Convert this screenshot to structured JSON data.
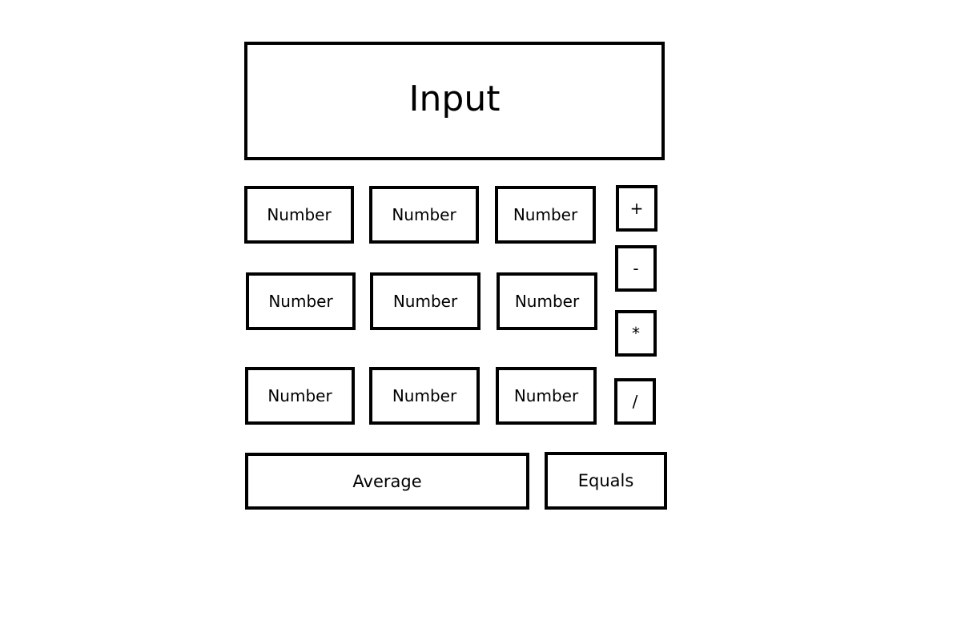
{
  "display": {
    "label": "Input"
  },
  "keypad": {
    "numbers": [
      "Number",
      "Number",
      "Number",
      "Number",
      "Number",
      "Number",
      "Number",
      "Number",
      "Number"
    ]
  },
  "operators": {
    "add": "+",
    "subtract": "-",
    "multiply": "*",
    "divide": "/"
  },
  "actions": {
    "average": "Average",
    "equals": "Equals"
  }
}
